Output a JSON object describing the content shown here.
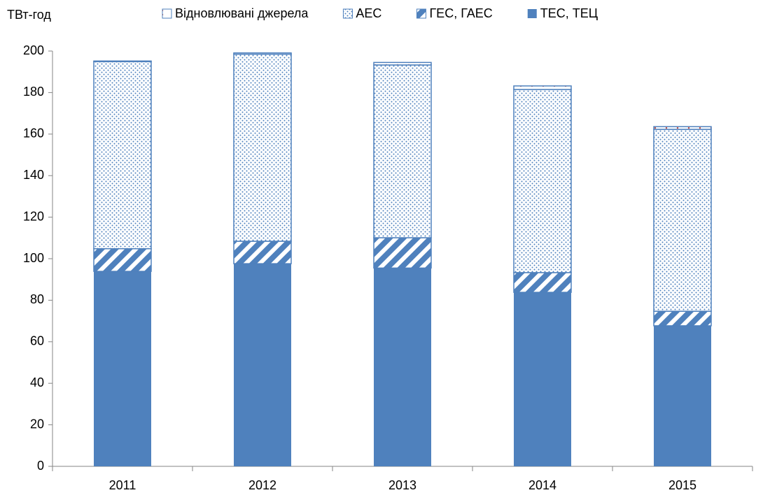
{
  "chart_data": {
    "type": "stacked_bar",
    "y_label": "ТВт-год",
    "categories": [
      "2011",
      "2012",
      "2013",
      "2014",
      "2015"
    ],
    "series": [
      {
        "name": "ТЕС, ТЕЦ",
        "color": "#4f81bd",
        "pattern": "solid",
        "values": [
          93.9,
          97.6,
          95.5,
          83.8,
          67.7
        ]
      },
      {
        "name": "ГЕС, ГАЕС",
        "color": "#4f81bd",
        "pattern": "stripes",
        "values": [
          10.9,
          10.8,
          14.6,
          9.5,
          7.0
        ]
      },
      {
        "name": "АЕС",
        "color": "#4f81bd",
        "pattern": "dots",
        "values": [
          90.1,
          90.1,
          83.2,
          88.2,
          87.6
        ]
      },
      {
        "name": "Відновлювані джерела",
        "color": "#c0504d",
        "pattern": "sparse",
        "values": [
          0.3,
          0.6,
          1.2,
          1.7,
          1.3
        ]
      }
    ],
    "legend_order": "reverse",
    "ylim": [
      0,
      200
    ],
    "yticks": [
      0,
      20,
      40,
      60,
      80,
      100,
      120,
      140,
      160,
      180,
      200
    ],
    "grid": false
  }
}
